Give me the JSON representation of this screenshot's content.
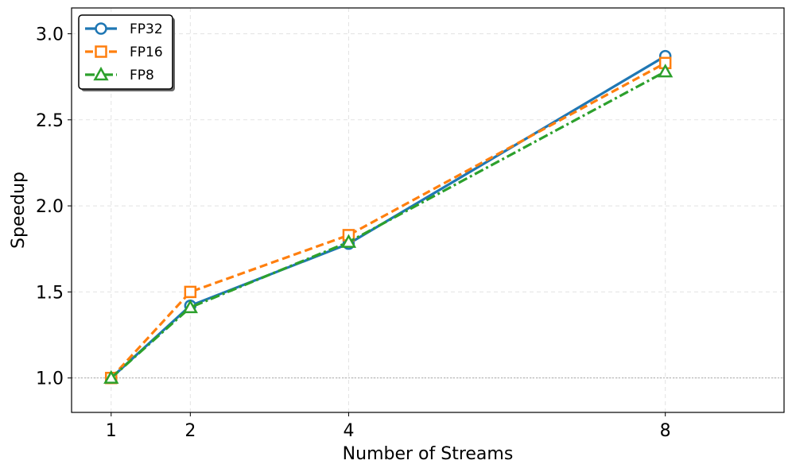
{
  "chart_data": {
    "type": "line",
    "title": "",
    "xlabel": "Number of Streams",
    "ylabel": "Speedup",
    "x": [
      1,
      2,
      4,
      8
    ],
    "x_ticks": [
      1,
      2,
      4,
      8
    ],
    "x_tick_labels": [
      "1",
      "2",
      "4",
      "8"
    ],
    "xlim": [
      0.5,
      9.5
    ],
    "y_ticks": [
      1.0,
      1.5,
      2.0,
      2.5,
      3.0
    ],
    "y_tick_labels": [
      "1.0",
      "1.5",
      "2.0",
      "2.5",
      "3.0"
    ],
    "ylim": [
      0.8,
      3.15
    ],
    "grid": true,
    "reference_line": 1.0,
    "legend_position": "top-left",
    "series": [
      {
        "name": "FP32",
        "values": [
          1.0,
          1.42,
          1.78,
          2.87
        ],
        "color": "#1f77b4",
        "marker": "circle",
        "linestyle": "solid"
      },
      {
        "name": "FP16",
        "values": [
          1.0,
          1.5,
          1.83,
          2.83
        ],
        "color": "#ff7f0e",
        "marker": "square",
        "linestyle": "dashed"
      },
      {
        "name": "FP8",
        "values": [
          1.0,
          1.41,
          1.79,
          2.78
        ],
        "color": "#2ca02c",
        "marker": "triangle",
        "linestyle": "dashdot"
      }
    ]
  }
}
